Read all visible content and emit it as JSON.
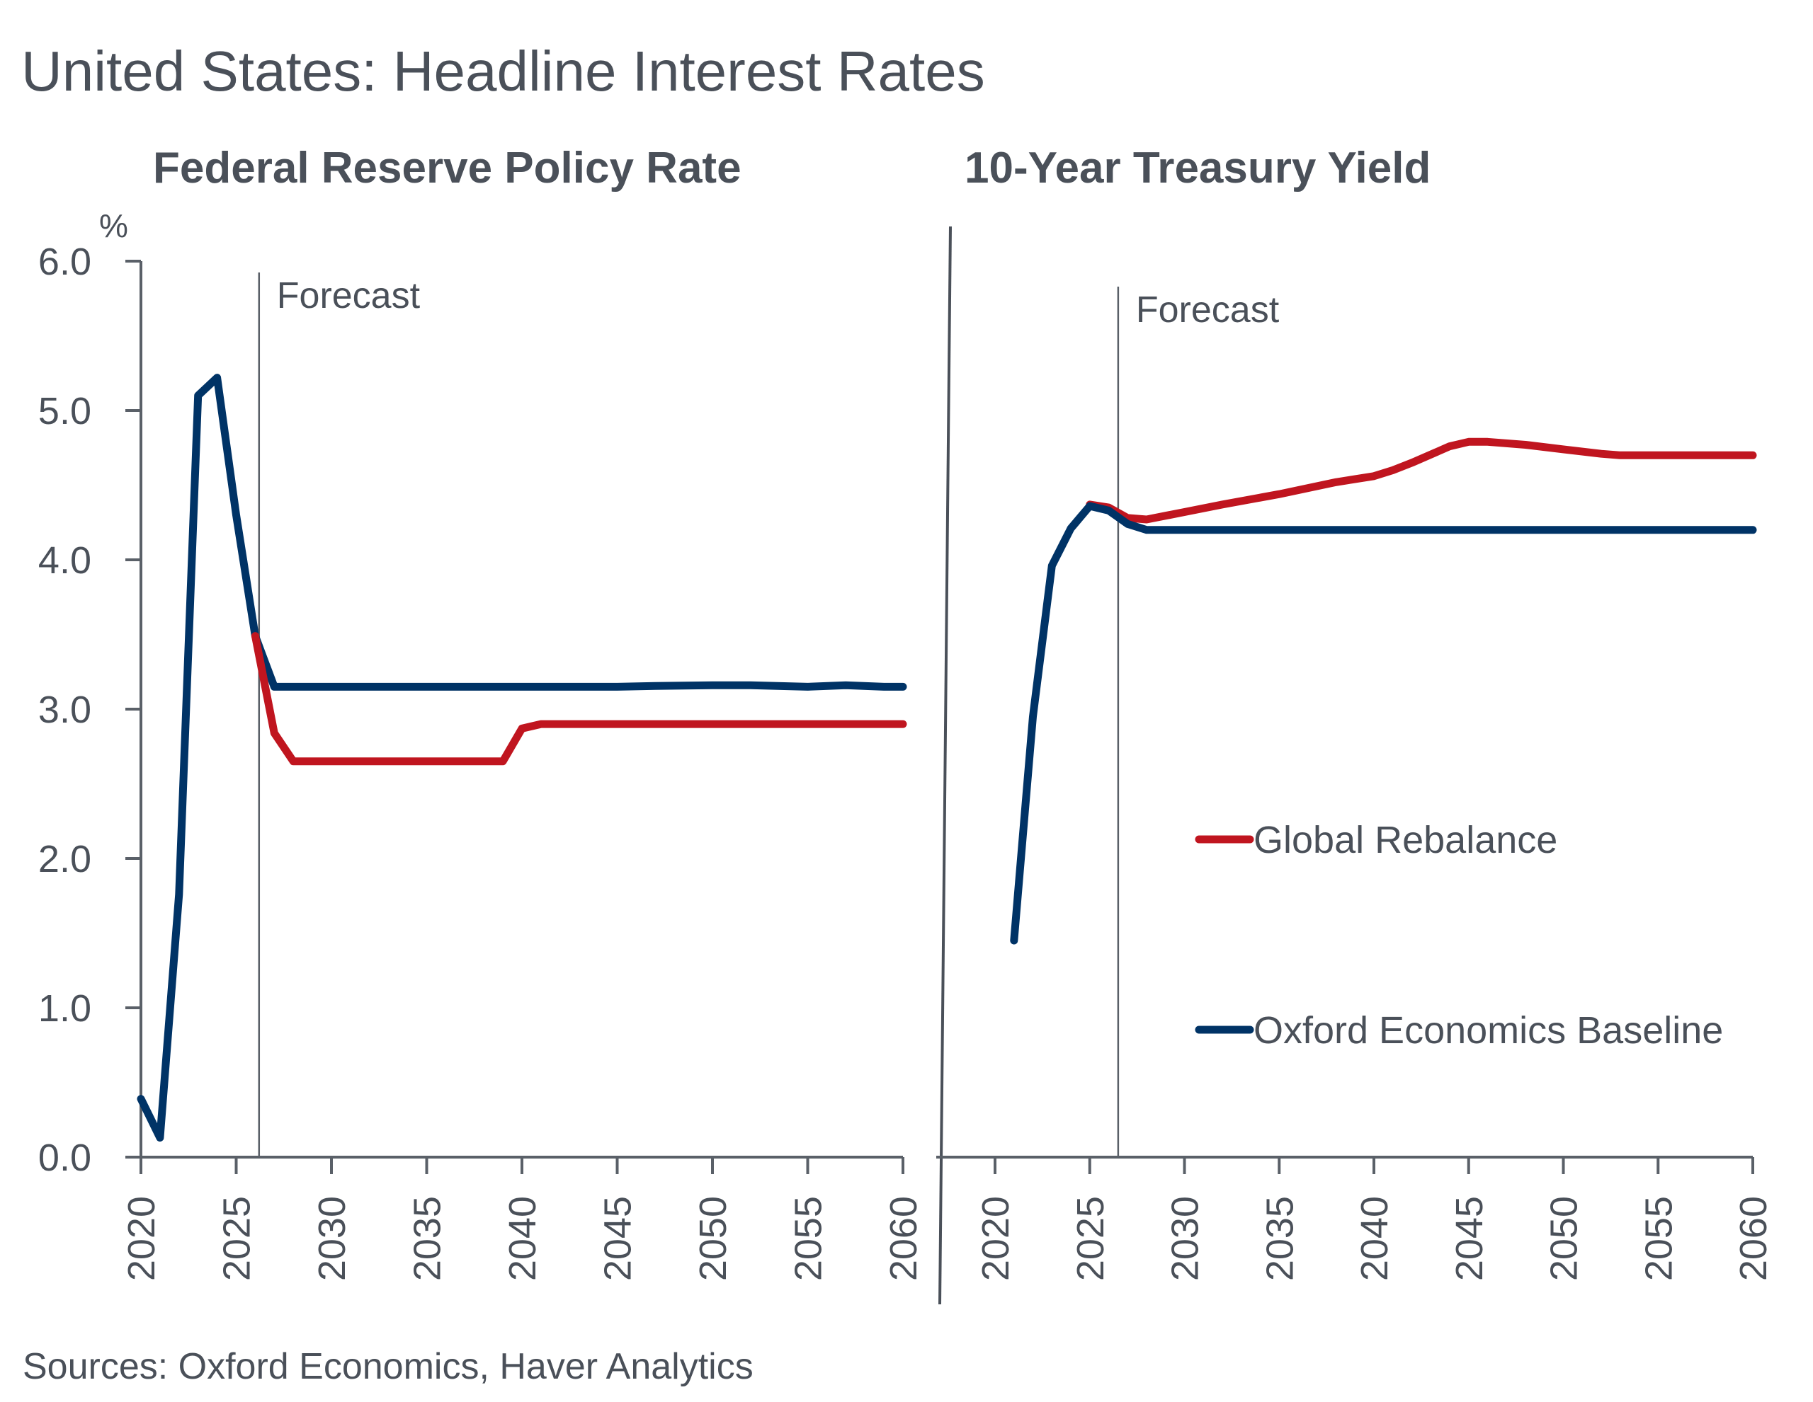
{
  "title": "United States: Headline Interest Rates",
  "source": "Sources: Oxford Economics, Haver Analytics",
  "chart_data": [
    {
      "type": "line",
      "title": "Federal Reserve Policy Rate",
      "ylabel": "%",
      "xlabel": "",
      "ylim": [
        0,
        6
      ],
      "yticks": [
        "0.0",
        "1.0",
        "2.0",
        "3.0",
        "4.0",
        "5.0",
        "6.0"
      ],
      "xlim": [
        2020,
        2060
      ],
      "xticks": [
        "2020",
        "2025",
        "2030",
        "2035",
        "2040",
        "2045",
        "2050",
        "2055",
        "2060"
      ],
      "annotation": {
        "text": "Forecast",
        "x": 2026.2
      },
      "grid": false,
      "series": [
        {
          "name": "Oxford Economics Baseline",
          "color": "#003366",
          "x": [
            2020,
            2021,
            2022,
            2023,
            2024,
            2025,
            2026,
            2027,
            2030,
            2035,
            2040,
            2045,
            2047,
            2050,
            2052,
            2055,
            2057,
            2059,
            2060
          ],
          "values": [
            0.39,
            0.13,
            1.76,
            5.1,
            5.22,
            4.3,
            3.49,
            3.15,
            3.15,
            3.15,
            3.15,
            3.15,
            3.155,
            3.16,
            3.16,
            3.15,
            3.16,
            3.15,
            3.15
          ]
        },
        {
          "name": "Global Rebalance",
          "color": "#c0151f",
          "x": [
            2026,
            2027,
            2028,
            2030,
            2035,
            2039,
            2040,
            2041,
            2045,
            2050,
            2055,
            2060
          ],
          "values": [
            3.49,
            2.84,
            2.65,
            2.65,
            2.65,
            2.65,
            2.87,
            2.9,
            2.9,
            2.9,
            2.9,
            2.9
          ]
        }
      ]
    },
    {
      "type": "line",
      "title": "10-Year Treasury Yield",
      "ylabel": "",
      "xlabel": "",
      "ylim": [
        0,
        6
      ],
      "xlim": [
        2020,
        2060
      ],
      "xticks": [
        "2020",
        "2025",
        "2030",
        "2035",
        "2040",
        "2045",
        "2050",
        "2055",
        "2060"
      ],
      "annotation": {
        "text": "Forecast",
        "x": 2026.5
      },
      "grid": false,
      "legend": {
        "position": "middle-right"
      },
      "series": [
        {
          "name": "Global Rebalance",
          "color": "#c0151f",
          "x": [
            2025,
            2026,
            2027,
            2028,
            2030,
            2032,
            2035,
            2038,
            2040,
            2041,
            2042,
            2044,
            2045,
            2046,
            2048,
            2050,
            2052,
            2053,
            2055,
            2060
          ],
          "values": [
            4.37,
            4.35,
            4.28,
            4.27,
            4.32,
            4.37,
            4.44,
            4.52,
            4.56,
            4.6,
            4.65,
            4.76,
            4.79,
            4.79,
            4.77,
            4.74,
            4.71,
            4.7,
            4.7,
            4.7
          ]
        },
        {
          "name": "Oxford Economics Baseline",
          "color": "#003366",
          "x": [
            2021,
            2022,
            2023,
            2024,
            2025,
            2026,
            2027,
            2028,
            2030,
            2035,
            2040,
            2045,
            2050,
            2055,
            2060
          ],
          "values": [
            1.45,
            2.95,
            3.96,
            4.21,
            4.36,
            4.33,
            4.24,
            4.2,
            4.2,
            4.2,
            4.2,
            4.2,
            4.2,
            4.2,
            4.2
          ]
        }
      ]
    }
  ],
  "legend": [
    {
      "label": "Global Rebalance",
      "color": "#c0151f"
    },
    {
      "label": "Oxford Economics Baseline",
      "color": "#003366"
    }
  ]
}
